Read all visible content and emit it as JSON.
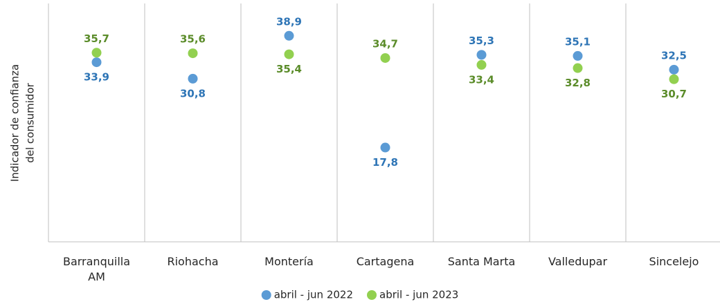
{
  "chart_data": {
    "type": "dot",
    "ylabel": [
      "Indicador de confianza",
      "del consumidor"
    ],
    "categories": [
      "Barranquilla AM",
      "Riohacha",
      "Montería",
      "Cartagena",
      "Santa Marta",
      "Valledupar",
      "Sincelejo"
    ],
    "series": [
      {
        "name": "abril - jun 2022",
        "color": "#5b9bd5",
        "label_color": "#2e75b6",
        "values": [
          33.9,
          30.8,
          38.9,
          17.8,
          35.3,
          35.1,
          32.5
        ],
        "value_labels": [
          "33,9",
          "30,8",
          "38,9",
          "17,8",
          "35,3",
          "35,1",
          "32,5"
        ]
      },
      {
        "name": "abril - jun 2023",
        "color": "#92d050",
        "label_color": "#5b8c2a",
        "values": [
          35.7,
          35.6,
          35.4,
          34.7,
          33.4,
          32.8,
          30.7
        ],
        "value_labels": [
          "35,7",
          "35,6",
          "35,4",
          "34,7",
          "33,4",
          "32,8",
          "30,7"
        ]
      }
    ],
    "ylim": [
      0,
      45
    ],
    "legend": "bottom"
  }
}
